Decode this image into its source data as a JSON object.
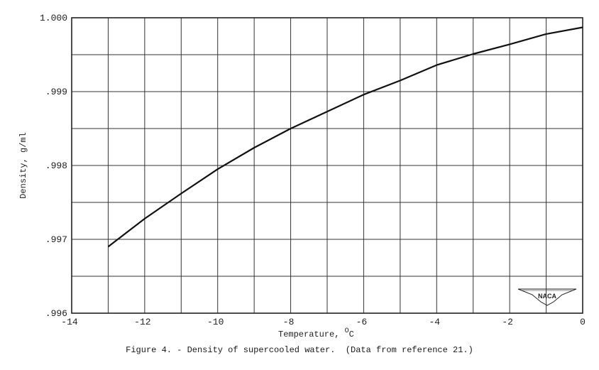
{
  "chart_data": {
    "type": "line",
    "title": "Figure 4. - Density of supercooled water.  (Data from reference 21.)",
    "xlabel": "Temperature, °C",
    "ylabel": "Density, g/ml",
    "xlim": [
      -14,
      0
    ],
    "ylim": [
      0.996,
      1.0
    ],
    "grid": true,
    "x_ticks": [
      "-14",
      "-12",
      "-10",
      "-8",
      "-6",
      "-4",
      "-2",
      "0"
    ],
    "y_ticks": [
      ".996",
      ".997",
      ".998",
      ".999",
      "1.000"
    ],
    "legend": null,
    "series": [
      {
        "name": "Density of supercooled water",
        "x": [
          -13,
          -12,
          -11,
          -10,
          -9,
          -8,
          -7,
          -6,
          -5,
          -4,
          -3,
          -2,
          -1,
          0
        ],
        "y": [
          0.9969,
          0.99728,
          0.99762,
          0.99795,
          0.99824,
          0.9985,
          0.99873,
          0.99896,
          0.99915,
          0.99936,
          0.99951,
          0.99964,
          0.99978,
          0.99987
        ]
      }
    ],
    "annotations": [
      "NACA logo (lower right)"
    ]
  },
  "figure": {
    "caption": "Figure 4. - Density of supercooled water.  (Data from reference 21.)",
    "xlabel_text": "Temperature, ",
    "xlabel_unit": "C",
    "xlabel_degree": "O",
    "ylabel_text": "Density, g/ml",
    "logo_text": "NACA"
  }
}
